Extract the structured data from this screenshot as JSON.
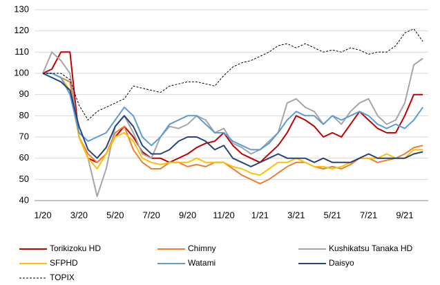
{
  "chart_data": {
    "type": "line",
    "categories": [
      "1/20",
      null,
      null,
      null,
      "3/20",
      null,
      null,
      null,
      "5/20",
      null,
      null,
      null,
      "7/20",
      null,
      null,
      null,
      "9/20",
      null,
      null,
      null,
      "11/20",
      null,
      null,
      null,
      "1/21",
      null,
      null,
      null,
      "3/21",
      null,
      null,
      null,
      "5/21",
      null,
      null,
      null,
      "7/21",
      null,
      null,
      null,
      "9/21",
      null,
      null
    ],
    "ylim": [
      40,
      130
    ],
    "yticks": [
      40,
      50,
      60,
      70,
      80,
      90,
      100,
      110,
      120,
      130
    ],
    "grid": true,
    "series": [
      {
        "name": "Torikizoku HD",
        "color": "#c00000",
        "values": [
          100,
          102,
          110,
          110,
          70,
          60,
          58,
          62,
          70,
          75,
          70,
          63,
          60,
          60,
          58,
          60,
          62,
          65,
          67,
          68,
          72,
          66,
          62,
          60,
          58,
          62,
          66,
          72,
          80,
          78,
          75,
          70,
          72,
          70,
          76,
          82,
          78,
          74,
          72,
          72,
          80,
          90,
          90
        ]
      },
      {
        "name": "Chimny",
        "color": "#ed7d31",
        "values": [
          100,
          100,
          98,
          96,
          70,
          62,
          58,
          62,
          72,
          75,
          64,
          58,
          55,
          55,
          58,
          58,
          56,
          57,
          56,
          58,
          58,
          55,
          52,
          50,
          48,
          50,
          53,
          56,
          58,
          58,
          56,
          55,
          56,
          55,
          57,
          60,
          60,
          58,
          59,
          60,
          62,
          65,
          66
        ]
      },
      {
        "name": "Kushikatsu Tanaka HD",
        "color": "#a5a5a5",
        "values": [
          100,
          110,
          106,
          100,
          70,
          60,
          42,
          55,
          75,
          80,
          72,
          62,
          60,
          70,
          75,
          74,
          76,
          80,
          78,
          72,
          74,
          67,
          65,
          62,
          64,
          68,
          72,
          86,
          88,
          84,
          82,
          76,
          80,
          76,
          82,
          86,
          88,
          80,
          76,
          78,
          86,
          104,
          107
        ]
      },
      {
        "name": "SFPHD",
        "color": "#ffc000",
        "values": [
          100,
          100,
          98,
          92,
          70,
          60,
          55,
          62,
          70,
          72,
          68,
          60,
          58,
          57,
          58,
          58,
          58,
          60,
          58,
          58,
          58,
          56,
          55,
          53,
          52,
          55,
          58,
          58,
          60,
          58,
          56,
          56,
          55,
          56,
          58,
          60,
          60,
          60,
          62,
          60,
          60,
          64,
          64
        ]
      },
      {
        "name": "Watami",
        "color": "#5b9bd5",
        "values": [
          100,
          100,
          98,
          90,
          72,
          68,
          70,
          72,
          78,
          84,
          80,
          70,
          66,
          70,
          76,
          78,
          80,
          80,
          76,
          72,
          72,
          68,
          66,
          64,
          64,
          67,
          72,
          78,
          82,
          80,
          80,
          76,
          80,
          78,
          80,
          82,
          80,
          76,
          74,
          76,
          74,
          78,
          84
        ]
      },
      {
        "name": "Daisyo",
        "color": "#264478",
        "values": [
          100,
          98,
          96,
          92,
          75,
          64,
          60,
          65,
          75,
          80,
          75,
          66,
          62,
          62,
          64,
          68,
          70,
          70,
          68,
          64,
          66,
          60,
          58,
          56,
          58,
          60,
          62,
          60,
          60,
          60,
          58,
          60,
          58,
          58,
          58,
          60,
          62,
          60,
          60,
          60,
          60,
          62,
          63
        ]
      },
      {
        "name": "TOPIX",
        "color": "#000000",
        "dashed": true,
        "values": [
          100,
          100,
          100,
          97,
          85,
          78,
          82,
          84,
          86,
          88,
          94,
          93,
          92,
          91,
          94,
          95,
          96,
          96,
          95,
          94,
          99,
          103,
          105,
          106,
          108,
          110,
          113,
          114,
          112,
          114,
          112,
          110,
          111,
          110,
          112,
          111,
          109,
          110,
          110,
          113,
          119,
          121,
          115
        ]
      }
    ]
  }
}
